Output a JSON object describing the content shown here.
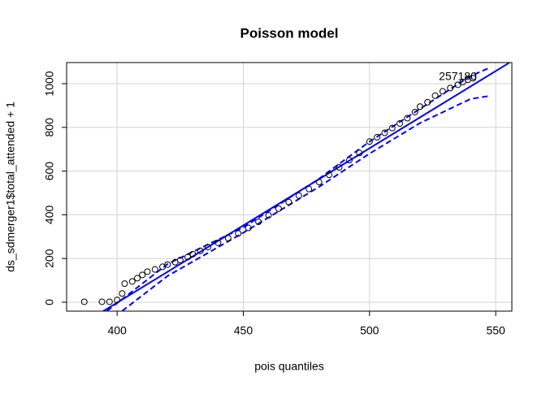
{
  "chart_data": {
    "type": "scatter",
    "title": "Poisson model",
    "x_label": "pois quantiles",
    "y_label": "ds_sdmerger1$total_attended + 1",
    "xlim": [
      380,
      556.4
    ],
    "ylim": [
      -40.9,
      1096.7
    ],
    "xticks": [
      400,
      450,
      500,
      550
    ],
    "yticks": [
      0,
      200,
      400,
      600,
      800,
      1000
    ],
    "grid": true,
    "point_color": "#000000",
    "x": [
      387,
      394,
      397,
      400,
      402,
      403,
      406,
      408,
      410,
      412,
      415,
      418,
      420,
      423,
      425,
      428,
      430,
      433,
      436,
      440,
      444,
      448,
      452,
      456,
      460,
      464,
      468,
      472,
      476,
      480,
      484,
      488,
      492,
      496,
      500,
      503,
      506,
      509,
      512,
      515,
      518,
      520,
      523,
      526,
      529,
      532,
      535,
      537,
      539,
      541
    ],
    "values": [
      2,
      2,
      2,
      10,
      40,
      85,
      95,
      110,
      125,
      140,
      150,
      162,
      172,
      183,
      193,
      207,
      220,
      235,
      252,
      272,
      293,
      315,
      340,
      368,
      398,
      428,
      458,
      488,
      518,
      550,
      583,
      617,
      650,
      683,
      735,
      755,
      775,
      797,
      818,
      842,
      870,
      895,
      915,
      945,
      965,
      980,
      995,
      1008,
      1018,
      1025
    ],
    "reference_line": {
      "color": "#0000ff",
      "x": [
        394.5,
        555.4
      ],
      "values": [
        -41,
        1096
      ]
    },
    "envelope": [
      {
        "color": "#0000ff",
        "x": [
          396,
          420,
          450,
          480,
          500,
          520,
          540,
          548
        ],
        "values": [
          -40,
          175,
          342,
          565,
          735,
          885,
          1035,
          1075
        ]
      },
      {
        "color": "#0000ff",
        "x": [
          402,
          420,
          450,
          480,
          500,
          520,
          540,
          548
        ],
        "values": [
          -40,
          120,
          318,
          528,
          680,
          820,
          930,
          945
        ]
      }
    ],
    "annotation": {
      "text": "257180",
      "x": 535,
      "y": 1030
    }
  }
}
